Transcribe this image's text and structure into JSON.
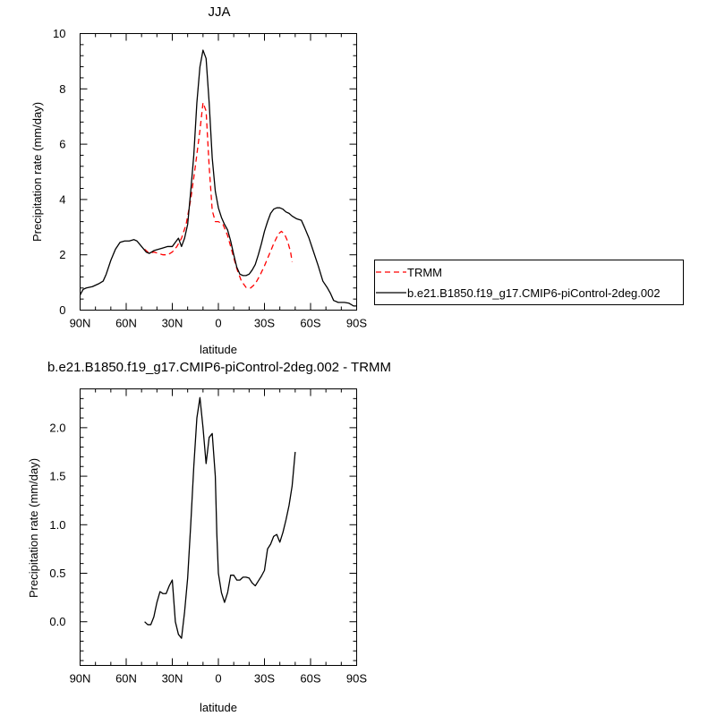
{
  "chart_data": [
    {
      "type": "line",
      "title": "JJA",
      "xlabel": "latitude",
      "ylabel": "Precipitation rate (mm/day)",
      "xlim": [
        90,
        -90
      ],
      "ylim": [
        0,
        10
      ],
      "xticks": [
        {
          "value": 90,
          "label": "90N"
        },
        {
          "value": 60,
          "label": "60N"
        },
        {
          "value": 30,
          "label": "30N"
        },
        {
          "value": 0,
          "label": "0"
        },
        {
          "value": -30,
          "label": "30S"
        },
        {
          "value": -60,
          "label": "60S"
        },
        {
          "value": -90,
          "label": "90S"
        }
      ],
      "yticks": [
        {
          "value": 0,
          "label": "0"
        },
        {
          "value": 2,
          "label": "2"
        },
        {
          "value": 4,
          "label": "4"
        },
        {
          "value": 6,
          "label": "6"
        },
        {
          "value": 8,
          "label": "8"
        },
        {
          "value": 10,
          "label": "10"
        }
      ],
      "legend_position": "right",
      "series": [
        {
          "name": "TRMM",
          "color": "#ff0000",
          "dash": true,
          "points": [
            [
              48,
              2.2
            ],
            [
              45,
              2.05
            ],
            [
              42,
              2.1
            ],
            [
              39,
              2.05
            ],
            [
              36,
              2.0
            ],
            [
              33,
              2.0
            ],
            [
              30,
              2.1
            ],
            [
              27,
              2.3
            ],
            [
              24,
              2.6
            ],
            [
              21,
              3.1
            ],
            [
              18,
              4.0
            ],
            [
              15,
              5.2
            ],
            [
              12,
              6.5
            ],
            [
              10,
              7.5
            ],
            [
              8,
              7.2
            ],
            [
              6,
              5.2
            ],
            [
              4,
              3.6
            ],
            [
              2,
              3.2
            ],
            [
              0,
              3.2
            ],
            [
              -3,
              3.1
            ],
            [
              -6,
              2.7
            ],
            [
              -9,
              2.1
            ],
            [
              -12,
              1.5
            ],
            [
              -15,
              1.05
            ],
            [
              -18,
              0.82
            ],
            [
              -21,
              0.8
            ],
            [
              -24,
              0.95
            ],
            [
              -27,
              1.25
            ],
            [
              -30,
              1.6
            ],
            [
              -33,
              2.0
            ],
            [
              -36,
              2.4
            ],
            [
              -39,
              2.75
            ],
            [
              -41,
              2.85
            ],
            [
              -43,
              2.75
            ],
            [
              -45,
              2.5
            ],
            [
              -47,
              2.1
            ],
            [
              -48,
              1.75
            ]
          ]
        },
        {
          "name": "b.e21.B1850.f19_g17.CMIP6-piControl-2deg.002",
          "color": "#000000",
          "dash": false,
          "points": [
            [
              90,
              0.55
            ],
            [
              88,
              0.75
            ],
            [
              86,
              0.8
            ],
            [
              82,
              0.85
            ],
            [
              78,
              0.95
            ],
            [
              75,
              1.05
            ],
            [
              73,
              1.3
            ],
            [
              70,
              1.8
            ],
            [
              67,
              2.2
            ],
            [
              64,
              2.45
            ],
            [
              61,
              2.5
            ],
            [
              58,
              2.5
            ],
            [
              55,
              2.55
            ],
            [
              53,
              2.5
            ],
            [
              50,
              2.3
            ],
            [
              47,
              2.1
            ],
            [
              45,
              2.05
            ],
            [
              42,
              2.15
            ],
            [
              39,
              2.2
            ],
            [
              36,
              2.25
            ],
            [
              33,
              2.3
            ],
            [
              30,
              2.3
            ],
            [
              28,
              2.45
            ],
            [
              26,
              2.6
            ],
            [
              24,
              2.3
            ],
            [
              22,
              2.6
            ],
            [
              20,
              3.1
            ],
            [
              18,
              4.3
            ],
            [
              16,
              5.6
            ],
            [
              14,
              7.5
            ],
            [
              12,
              8.8
            ],
            [
              10,
              9.4
            ],
            [
              8,
              9.1
            ],
            [
              6,
              7.5
            ],
            [
              4,
              5.5
            ],
            [
              2,
              4.3
            ],
            [
              0,
              3.7
            ],
            [
              -2,
              3.35
            ],
            [
              -4,
              3.1
            ],
            [
              -6,
              2.9
            ],
            [
              -8,
              2.5
            ],
            [
              -10,
              2.0
            ],
            [
              -12,
              1.55
            ],
            [
              -14,
              1.3
            ],
            [
              -16,
              1.25
            ],
            [
              -18,
              1.25
            ],
            [
              -20,
              1.3
            ],
            [
              -22,
              1.45
            ],
            [
              -24,
              1.65
            ],
            [
              -26,
              2.0
            ],
            [
              -28,
              2.4
            ],
            [
              -30,
              2.85
            ],
            [
              -32,
              3.2
            ],
            [
              -34,
              3.5
            ],
            [
              -36,
              3.65
            ],
            [
              -38,
              3.7
            ],
            [
              -40,
              3.7
            ],
            [
              -42,
              3.65
            ],
            [
              -44,
              3.55
            ],
            [
              -46,
              3.5
            ],
            [
              -48,
              3.4
            ],
            [
              -51,
              3.3
            ],
            [
              -54,
              3.25
            ],
            [
              -56,
              3.0
            ],
            [
              -59,
              2.6
            ],
            [
              -62,
              2.1
            ],
            [
              -65,
              1.6
            ],
            [
              -68,
              1.05
            ],
            [
              -71,
              0.8
            ],
            [
              -73,
              0.6
            ],
            [
              -75,
              0.35
            ],
            [
              -78,
              0.28
            ],
            [
              -82,
              0.28
            ],
            [
              -85,
              0.25
            ],
            [
              -88,
              0.15
            ],
            [
              -90,
              0.15
            ]
          ]
        }
      ]
    },
    {
      "type": "line",
      "title": "b.e21.B1850.f19_g17.CMIP6-piControl-2deg.002 - TRMM",
      "xlabel": "latitude",
      "ylabel": "Precipitation rate (mm/day)",
      "xlim": [
        90,
        -90
      ],
      "ylim": [
        -0.45,
        2.4
      ],
      "xticks": [
        {
          "value": 90,
          "label": "90N"
        },
        {
          "value": 60,
          "label": "60N"
        },
        {
          "value": 30,
          "label": "30N"
        },
        {
          "value": 0,
          "label": "0"
        },
        {
          "value": -30,
          "label": "30S"
        },
        {
          "value": -60,
          "label": "60S"
        },
        {
          "value": -90,
          "label": "90S"
        }
      ],
      "yticks": [
        {
          "value": 0,
          "label": "0.0"
        },
        {
          "value": 0.5,
          "label": "0.5"
        },
        {
          "value": 1,
          "label": "1.0"
        },
        {
          "value": 1.5,
          "label": "1.5"
        },
        {
          "value": 2,
          "label": "2.0"
        }
      ],
      "series": [
        {
          "color": "#000000",
          "dash": false,
          "points": [
            [
              48,
              0.0
            ],
            [
              46,
              -0.03
            ],
            [
              44,
              -0.03
            ],
            [
              42,
              0.05
            ],
            [
              40,
              0.2
            ],
            [
              38,
              0.31
            ],
            [
              36,
              0.29
            ],
            [
              34,
              0.29
            ],
            [
              32,
              0.37
            ],
            [
              30,
              0.43
            ],
            [
              28,
              0.0
            ],
            [
              26,
              -0.13
            ],
            [
              24,
              -0.17
            ],
            [
              22,
              0.1
            ],
            [
              20,
              0.45
            ],
            [
              18,
              1.0
            ],
            [
              16,
              1.6
            ],
            [
              14,
              2.1
            ],
            [
              12,
              2.31
            ],
            [
              10,
              2.0
            ],
            [
              8,
              1.63
            ],
            [
              6,
              1.9
            ],
            [
              4,
              1.94
            ],
            [
              2,
              1.5
            ],
            [
              1,
              0.9
            ],
            [
              0,
              0.5
            ],
            [
              -2,
              0.3
            ],
            [
              -4,
              0.2
            ],
            [
              -6,
              0.3
            ],
            [
              -8,
              0.48
            ],
            [
              -10,
              0.48
            ],
            [
              -12,
              0.43
            ],
            [
              -14,
              0.43
            ],
            [
              -16,
              0.46
            ],
            [
              -18,
              0.46
            ],
            [
              -20,
              0.45
            ],
            [
              -22,
              0.4
            ],
            [
              -24,
              0.37
            ],
            [
              -26,
              0.42
            ],
            [
              -28,
              0.47
            ],
            [
              -30,
              0.53
            ],
            [
              -32,
              0.75
            ],
            [
              -34,
              0.8
            ],
            [
              -36,
              0.88
            ],
            [
              -38,
              0.9
            ],
            [
              -40,
              0.82
            ],
            [
              -42,
              0.92
            ],
            [
              -44,
              1.05
            ],
            [
              -46,
              1.2
            ],
            [
              -48,
              1.4
            ],
            [
              -50,
              1.75
            ]
          ]
        }
      ]
    }
  ]
}
